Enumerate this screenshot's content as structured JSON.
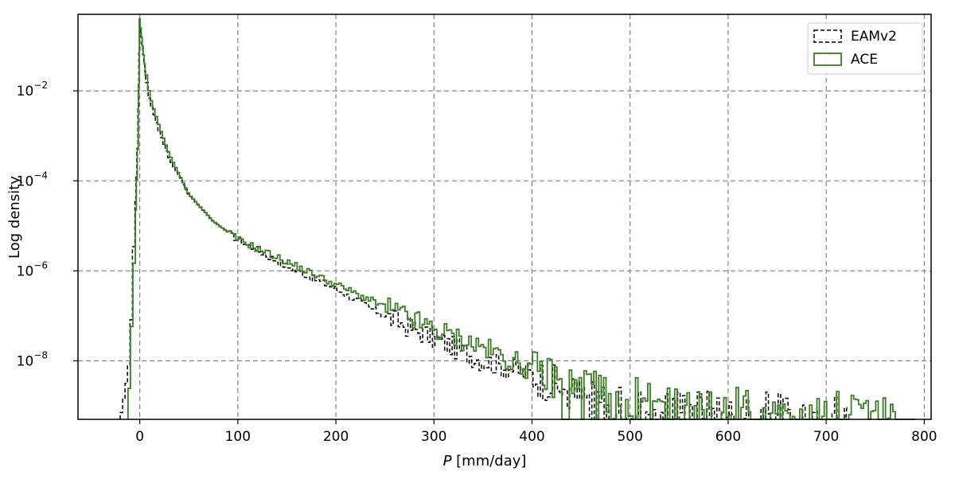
{
  "chart_data": {
    "type": "histogram",
    "xlabel_var": "P",
    "xlabel_unit": " [mm/day]",
    "ylabel": "Log density",
    "xlim": [
      -63,
      807
    ],
    "ylim_log10": [
      -9.3,
      -0.3
    ],
    "x_ticks": [
      0,
      100,
      200,
      300,
      400,
      500,
      600,
      700,
      800
    ],
    "x_tick_labels": [
      "0",
      "100",
      "200",
      "300",
      "400",
      "500",
      "600",
      "700",
      "800"
    ],
    "y_ticks_log10": [
      -8,
      -6,
      -4,
      -2
    ],
    "y_tick_base": "10",
    "y_tick_exponents": [
      "−8",
      "−6",
      "−4",
      "−2"
    ],
    "grid": true,
    "grid_style": "dashed",
    "legend_position": "top-right",
    "series": [
      {
        "name": "EAMv2",
        "style": "dashed",
        "color": "#000000",
        "tail_from": 90,
        "tail_to": 720,
        "points_log10": [
          [
            -20,
            -9.3
          ],
          [
            -15,
            -8.7
          ],
          [
            -10,
            -7.9
          ],
          [
            -6,
            -5.3
          ],
          [
            -2,
            -3.0
          ],
          [
            0,
            -0.5
          ],
          [
            2,
            -0.9
          ],
          [
            5,
            -1.5
          ],
          [
            10,
            -2.2
          ],
          [
            20,
            -2.9
          ],
          [
            30,
            -3.5
          ],
          [
            50,
            -4.3
          ],
          [
            75,
            -4.9
          ],
          [
            100,
            -5.3
          ],
          [
            150,
            -5.9
          ],
          [
            200,
            -6.4
          ],
          [
            250,
            -7.0
          ],
          [
            300,
            -7.5
          ],
          [
            350,
            -8.0
          ],
          [
            400,
            -8.3
          ],
          [
            450,
            -8.8
          ],
          [
            500,
            -9.0
          ],
          [
            560,
            -9.0
          ],
          [
            600,
            -9.1
          ],
          [
            650,
            -9.1
          ],
          [
            720,
            -9.1
          ]
        ]
      },
      {
        "name": "ACE",
        "style": "solid",
        "color": "#3a7d22",
        "tail_from": 90,
        "tail_to": 790,
        "points_log10": [
          [
            -12,
            -9.3
          ],
          [
            -6,
            -6.0
          ],
          [
            -2,
            -3.3
          ],
          [
            0,
            -0.4
          ],
          [
            2,
            -0.8
          ],
          [
            5,
            -1.4
          ],
          [
            10,
            -2.1
          ],
          [
            20,
            -2.8
          ],
          [
            30,
            -3.4
          ],
          [
            50,
            -4.3
          ],
          [
            75,
            -4.9
          ],
          [
            100,
            -5.3
          ],
          [
            150,
            -5.8
          ],
          [
            200,
            -6.3
          ],
          [
            250,
            -6.8
          ],
          [
            300,
            -7.3
          ],
          [
            350,
            -7.7
          ],
          [
            400,
            -8.2
          ],
          [
            450,
            -8.6
          ],
          [
            500,
            -8.8
          ],
          [
            560,
            -9.0
          ],
          [
            600,
            -9.0
          ],
          [
            650,
            -9.1
          ],
          [
            700,
            -9.1
          ],
          [
            790,
            -9.1
          ]
        ]
      }
    ]
  }
}
